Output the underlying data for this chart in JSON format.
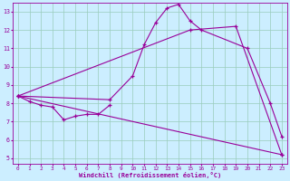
{
  "xlabel": "Windchill (Refroidissement éolien,°C)",
  "bg_color": "#cceeff",
  "line_color": "#990099",
  "grid_color": "#99ccbb",
  "xlim": [
    -0.5,
    23.5
  ],
  "ylim": [
    4.7,
    13.5
  ],
  "xticks": [
    0,
    1,
    2,
    3,
    4,
    5,
    6,
    7,
    8,
    9,
    10,
    11,
    12,
    13,
    14,
    15,
    16,
    17,
    18,
    19,
    20,
    21,
    22,
    23
  ],
  "yticks": [
    5,
    6,
    7,
    8,
    9,
    10,
    11,
    12,
    13
  ],
  "line1_x": [
    0,
    1,
    2,
    3,
    4,
    5,
    6,
    7,
    8
  ],
  "line1_y": [
    8.4,
    8.1,
    7.9,
    7.8,
    7.1,
    7.3,
    7.4,
    7.4,
    7.9
  ],
  "line2_x": [
    0,
    8,
    10,
    11,
    12,
    13,
    14,
    15,
    16,
    20,
    22,
    23
  ],
  "line2_y": [
    8.4,
    8.2,
    9.5,
    11.2,
    12.4,
    13.2,
    13.4,
    12.5,
    12.0,
    11.0,
    8.0,
    6.2
  ],
  "line3_x": [
    0,
    15,
    19,
    23
  ],
  "line3_y": [
    8.4,
    12.0,
    12.2,
    5.2
  ],
  "line4_x": [
    0,
    23
  ],
  "line4_y": [
    8.4,
    5.2
  ]
}
